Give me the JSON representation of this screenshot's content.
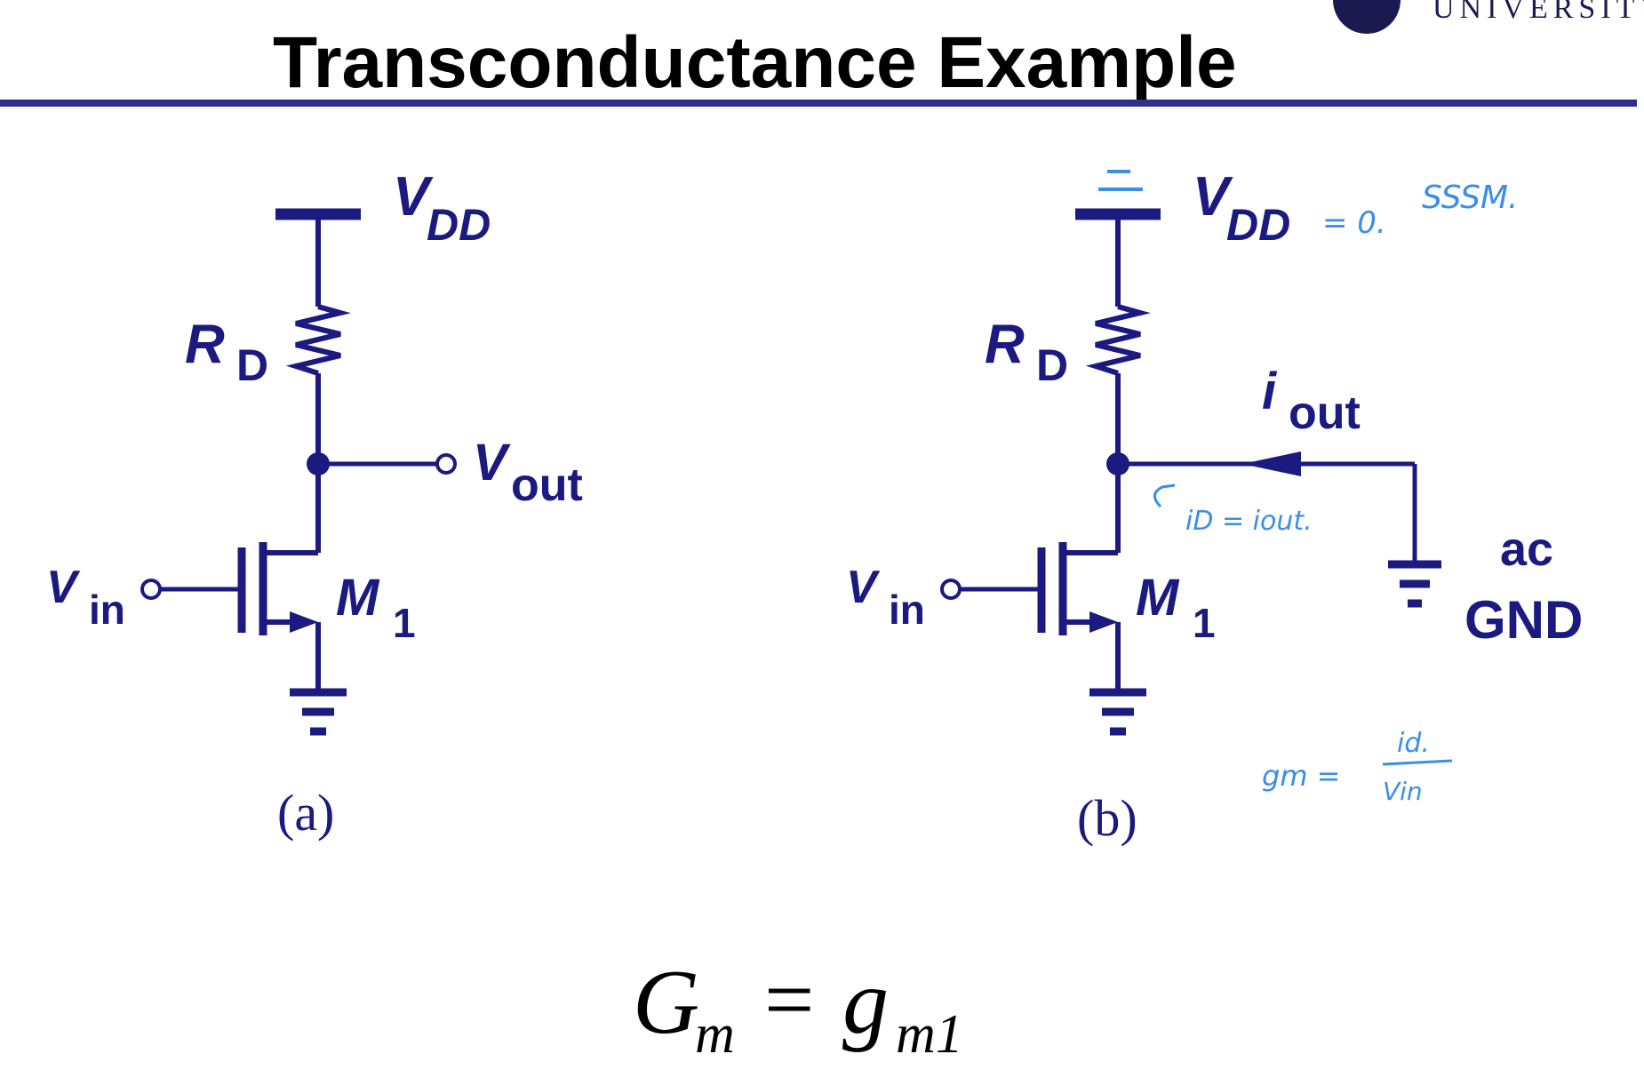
{
  "slide": {
    "title": "Transconductance Example",
    "university": "UNIVERSITY",
    "colors": {
      "circuit": "#1a1a80",
      "annotation": "#3b8ee8",
      "rule": "#2e2e8f"
    }
  },
  "circuit_a": {
    "supply": "V",
    "supply_sub": "DD",
    "resistor": "R",
    "resistor_sub": "D",
    "output": "V",
    "output_sub": "out",
    "input": "V",
    "input_sub": "in",
    "transistor": "M",
    "transistor_sub": "1",
    "caption": "(a)"
  },
  "circuit_b": {
    "supply": "V",
    "supply_sub": "DD",
    "resistor": "R",
    "resistor_sub": "D",
    "current": "i",
    "current_sub": "out",
    "input": "V",
    "input_sub": "in",
    "transistor": "M",
    "transistor_sub": "1",
    "ac_gnd_line1": "ac",
    "ac_gnd_line2": "GND",
    "caption": "(b)"
  },
  "annotations": {
    "vdd_zero": "= 0.",
    "ssm": "SSSM.",
    "id_iout": "iD = iout.",
    "gm_left": "gm =",
    "gm_num": "id.",
    "gm_den": "Vin"
  },
  "equation": {
    "lhs": "G",
    "lhs_sub": "m",
    "eq": "=",
    "rhs": "g",
    "rhs_sub": "m1"
  }
}
